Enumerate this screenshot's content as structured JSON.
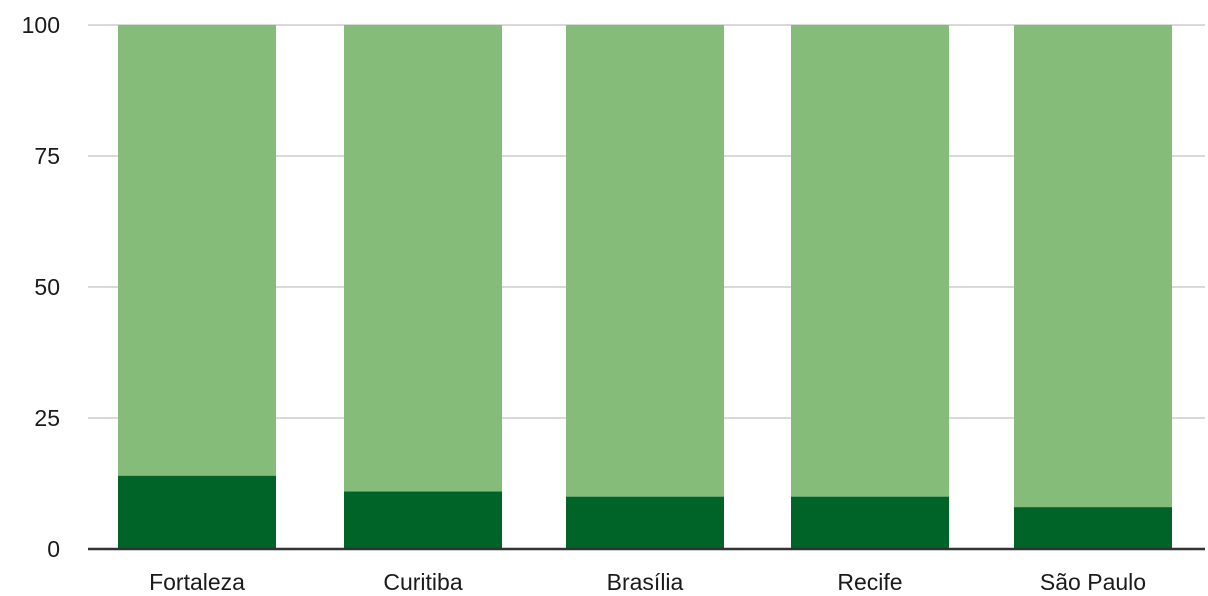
{
  "chart_data": {
    "type": "bar",
    "stacked": true,
    "categories": [
      "Fortaleza",
      "Curitiba",
      "Brasília",
      "Recife",
      "São Paulo"
    ],
    "series": [
      {
        "values": [
          14,
          11,
          10,
          10,
          8
        ],
        "color": "#006428"
      },
      {
        "values": [
          86,
          89,
          90,
          90,
          92
        ],
        "color": "#86bc79"
      }
    ],
    "yticks": [
      0,
      25,
      50,
      75,
      100
    ],
    "ylim": [
      0,
      100
    ],
    "grid": true,
    "legend": "none"
  }
}
